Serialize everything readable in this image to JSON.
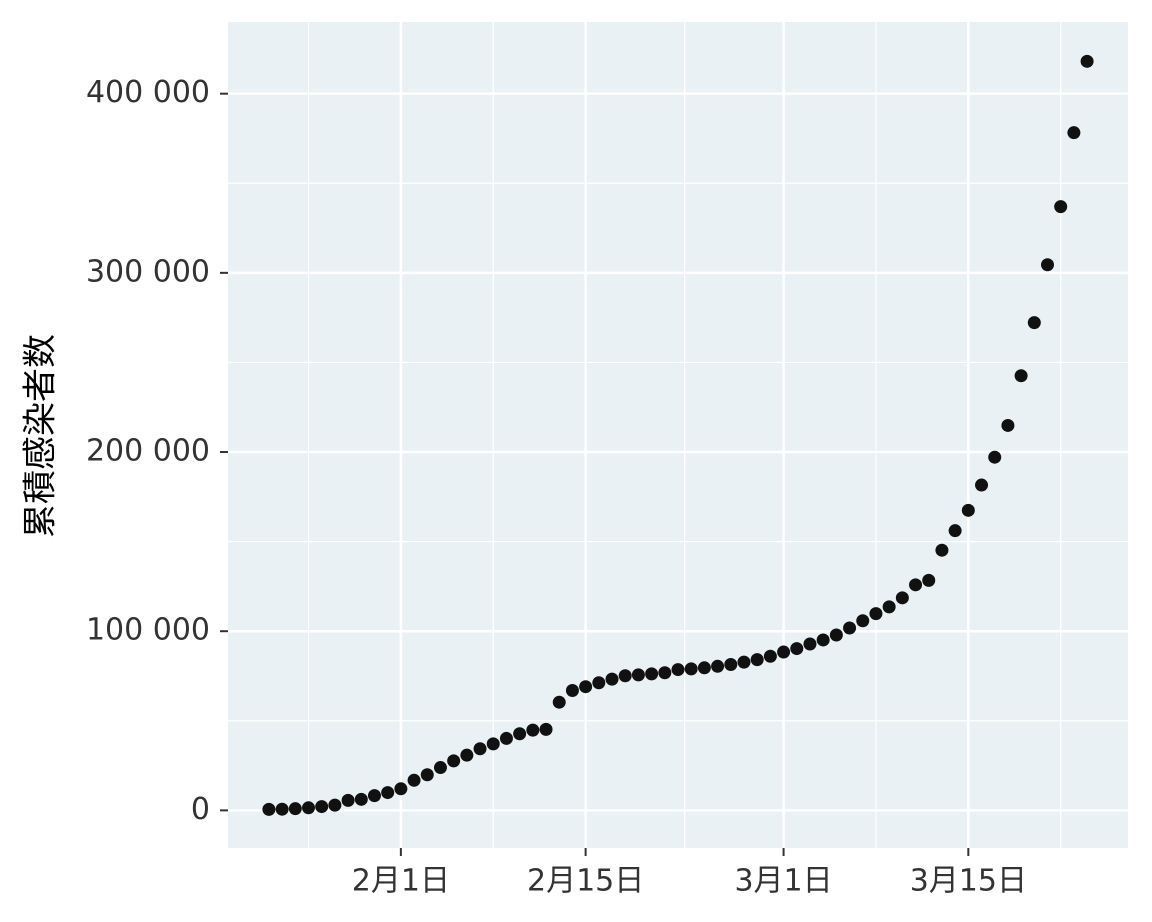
{
  "chart_data": {
    "type": "scatter",
    "y_label": "累積感染者数",
    "categories": [
      null,
      null,
      null,
      null,
      null,
      null,
      null,
      null,
      null,
      null,
      "2月1日",
      null,
      null,
      null,
      null,
      null,
      null,
      null,
      null,
      null,
      null,
      null,
      null,
      null,
      "2月15日",
      null,
      null,
      null,
      null,
      null,
      null,
      null,
      null,
      null,
      null,
      null,
      null,
      null,
      null,
      "3月1日",
      null,
      null,
      null,
      null,
      null,
      null,
      null,
      null,
      null,
      null,
      null,
      null,
      null,
      "3月15日",
      null,
      null,
      null,
      null,
      null,
      null,
      null,
      null,
      null
    ],
    "values": [
      555,
      654,
      941,
      1434,
      2118,
      2927,
      5578,
      6166,
      8234,
      9927,
      12038,
      16787,
      19887,
      23898,
      27643,
      30802,
      34395,
      37129,
      40159,
      42762,
      44802,
      45221,
      60368,
      66885,
      69030,
      71224,
      73258,
      75136,
      75639,
      76197,
      76823,
      78579,
      78965,
      79568,
      80413,
      81395,
      82754,
      84120,
      86011,
      88369,
      90306,
      92840,
      95120,
      97886,
      101801,
      105847,
      109821,
      113590,
      118620,
      125875,
      128352,
      145205,
      156101,
      167454,
      181574,
      197102,
      214821,
      242570,
      272208,
      304507,
      336953,
      378235,
      418045
    ],
    "color": "#111111",
    "ylim": [
      -21000,
      440000
    ],
    "yticks": [
      0,
      {
        "value": 100000,
        "label": "100 000"
      },
      {
        "value": 200000,
        "label": "200 000"
      },
      {
        "value": 300000,
        "label": "300 000"
      },
      {
        "value": 400000,
        "label": "400 000"
      }
    ],
    "grid": true,
    "panel_color": "#e9f1f5"
  }
}
